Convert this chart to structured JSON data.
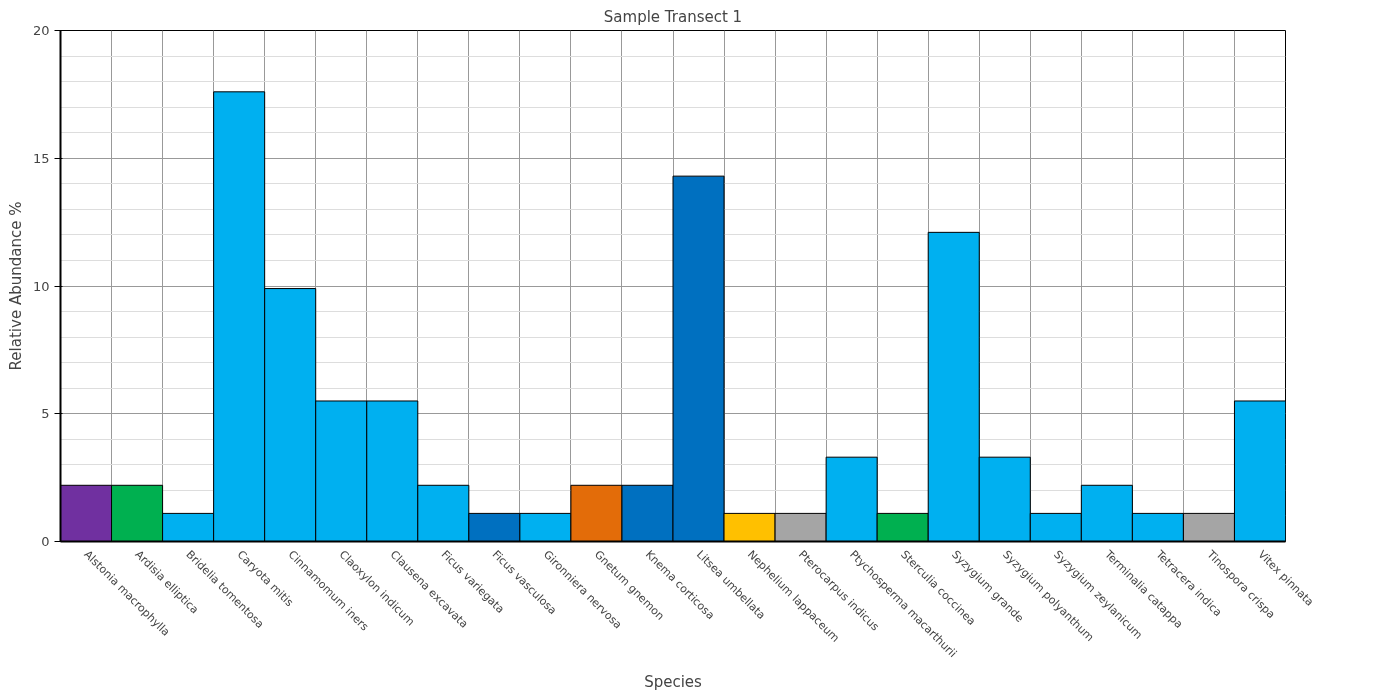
{
  "chart_data": {
    "type": "bar",
    "title": "Sample Transect 1",
    "xlabel": "Species",
    "ylabel": "Relative Abundance %",
    "categories": [
      "Alstonia macrophylla",
      "Ardisia elliptica",
      "Bridelia tomentosa",
      "Caryota mitis",
      "Cinnamomum iners",
      "Claoxylon indicum",
      "Clausena excavata",
      "Ficus variegata",
      "Ficus vasculosa",
      "Gironniera nervosa",
      "Gnetum gnemon",
      "Knema corticosa",
      "Litsea umbellata",
      "Nephelium lappaceum",
      "Pterocarpus indicus",
      "Ptychosperma macarthurii",
      "Sterculia coccinea",
      "Syzygium grande",
      "Syzygium polyanthum",
      "Syzygium zeylanicum",
      "Terminalia catappa",
      "Tetracera indica",
      "Tinospora crispa",
      "Vitex pinnata"
    ],
    "values": [
      2.2,
      2.2,
      1.1,
      17.6,
      9.9,
      5.5,
      5.5,
      2.2,
      1.1,
      1.1,
      2.2,
      2.2,
      14.3,
      1.1,
      1.1,
      3.3,
      1.1,
      12.1,
      3.3,
      1.1,
      2.2,
      1.1,
      1.1,
      5.5
    ],
    "colors": [
      "#7030a0",
      "#00b050",
      "#00b0f0",
      "#00b0f0",
      "#00b0f0",
      "#00b0f0",
      "#00b0f0",
      "#00b0f0",
      "#0070c0",
      "#00b0f0",
      "#e36c09",
      "#0070c0",
      "#0070c0",
      "#ffc000",
      "#a5a5a5",
      "#00b0f0",
      "#00b050",
      "#00b0f0",
      "#00b0f0",
      "#00b0f0",
      "#00b0f0",
      "#00b0f0",
      "#a5a5a5",
      "#00b0f0"
    ],
    "ylim": [
      0,
      20
    ],
    "yticks": [
      0,
      5,
      10,
      15,
      20
    ],
    "grid": true
  }
}
